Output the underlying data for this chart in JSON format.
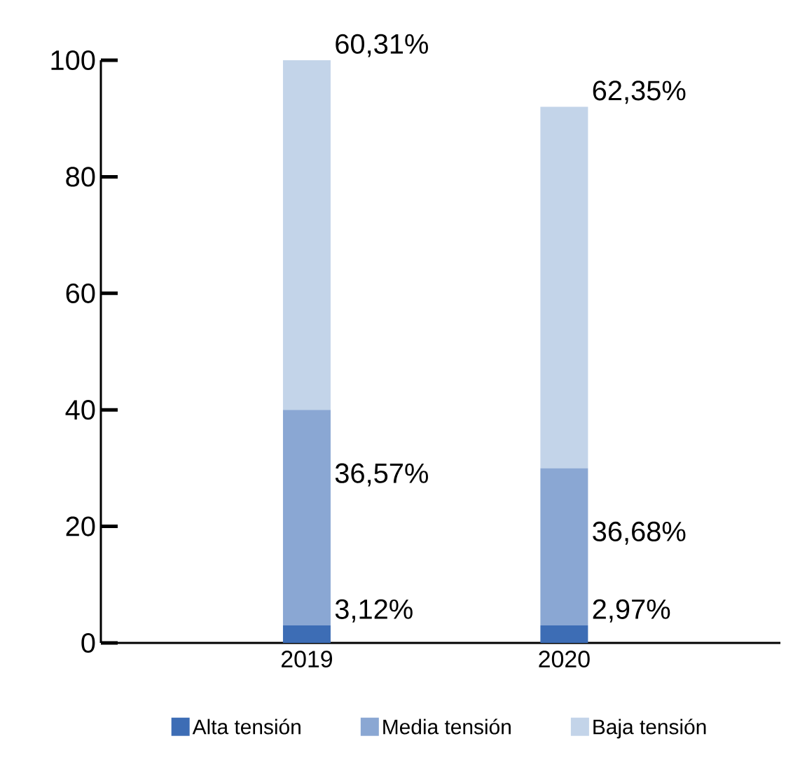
{
  "chart_data": {
    "type": "bar",
    "stacked": true,
    "categories": [
      "2019",
      "2020"
    ],
    "series": [
      {
        "name": "Alta tensión",
        "color": "#3d6db5",
        "values": [
          3,
          3
        ]
      },
      {
        "name": "Media tensión",
        "color": "#8aa7d3",
        "values": [
          37,
          27
        ]
      },
      {
        "name": "Baja tensión",
        "color": "#c3d4e9",
        "values": [
          60,
          62
        ]
      }
    ],
    "annotations": [
      {
        "text": "3,12%",
        "x": "2019",
        "y": 3
      },
      {
        "text": "36,57%",
        "x": "2019",
        "y": 40
      },
      {
        "text": "60,31%",
        "x": "2019",
        "y": 100
      },
      {
        "text": "2,97%",
        "x": "2020",
        "y": 3
      },
      {
        "text": "36,68%",
        "x": "2020",
        "y": 30
      },
      {
        "text": "62,35%",
        "x": "2020",
        "y": 92
      }
    ],
    "ylim": [
      0,
      100
    ],
    "yticks": [
      0,
      20,
      40,
      60,
      80,
      100
    ],
    "legend": "bottom",
    "grid": false
  }
}
